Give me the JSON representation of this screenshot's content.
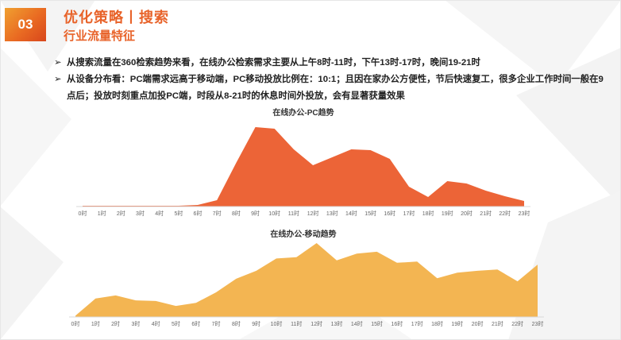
{
  "header": {
    "badge": "03",
    "title": "优化策略丨搜索",
    "subtitle": "行业流量特征"
  },
  "bullets": [
    {
      "marker": "➢",
      "text": "从搜索流量在360检索趋势来看，在线办公检索需求主要从上午8时-11时，下午13时-17时，晚间19-21时"
    },
    {
      "marker": "➢",
      "text": "从设备分布看：PC端需求远高于移动端，PC移动投放比例在：10:1；且因在家办公方便性，节后快速复工，很多企业工作时间一般在9点后；投放时刻重点加投PC端，时段从8-21时的休息时间外投放，会有显著获量效果"
    }
  ],
  "colors": {
    "accent": "#e8632a",
    "pc_series": "#ec6437",
    "mobile_series": "#f3b552"
  },
  "chart_data": [
    {
      "type": "area",
      "title": "在线办公-PC趋势",
      "categories": [
        "0时",
        "1时",
        "2时",
        "3时",
        "4时",
        "5时",
        "6时",
        "7时",
        "8时",
        "9时",
        "10时",
        "11时",
        "12时",
        "13时",
        "14时",
        "15时",
        "16时",
        "17时",
        "18时",
        "19时",
        "20时",
        "21时",
        "22时",
        "23时"
      ],
      "values": [
        1,
        1,
        1,
        1,
        1,
        1,
        2,
        8,
        55,
        100,
        98,
        72,
        52,
        62,
        72,
        71,
        60,
        25,
        12,
        32,
        29,
        20,
        13,
        7
      ],
      "ylim": [
        0,
        100
      ],
      "grid": false,
      "legend": "none"
    },
    {
      "type": "area",
      "title": "在线办公-移动趋势",
      "categories": [
        "0时",
        "1时",
        "2时",
        "3时",
        "4时",
        "5时",
        "6时",
        "7时",
        "8时",
        "9时",
        "10时",
        "11时",
        "12时",
        "13时",
        "14时",
        "15时",
        "16时",
        "17时",
        "18时",
        "19时",
        "20时",
        "21时",
        "22时",
        "23时"
      ],
      "values": [
        2,
        30,
        35,
        27,
        26,
        18,
        23,
        40,
        62,
        75,
        95,
        97,
        120,
        92,
        103,
        106,
        88,
        90,
        63,
        72,
        75,
        77,
        58,
        85
      ],
      "ylim": [
        0,
        120
      ],
      "grid": false,
      "legend": "none"
    }
  ]
}
